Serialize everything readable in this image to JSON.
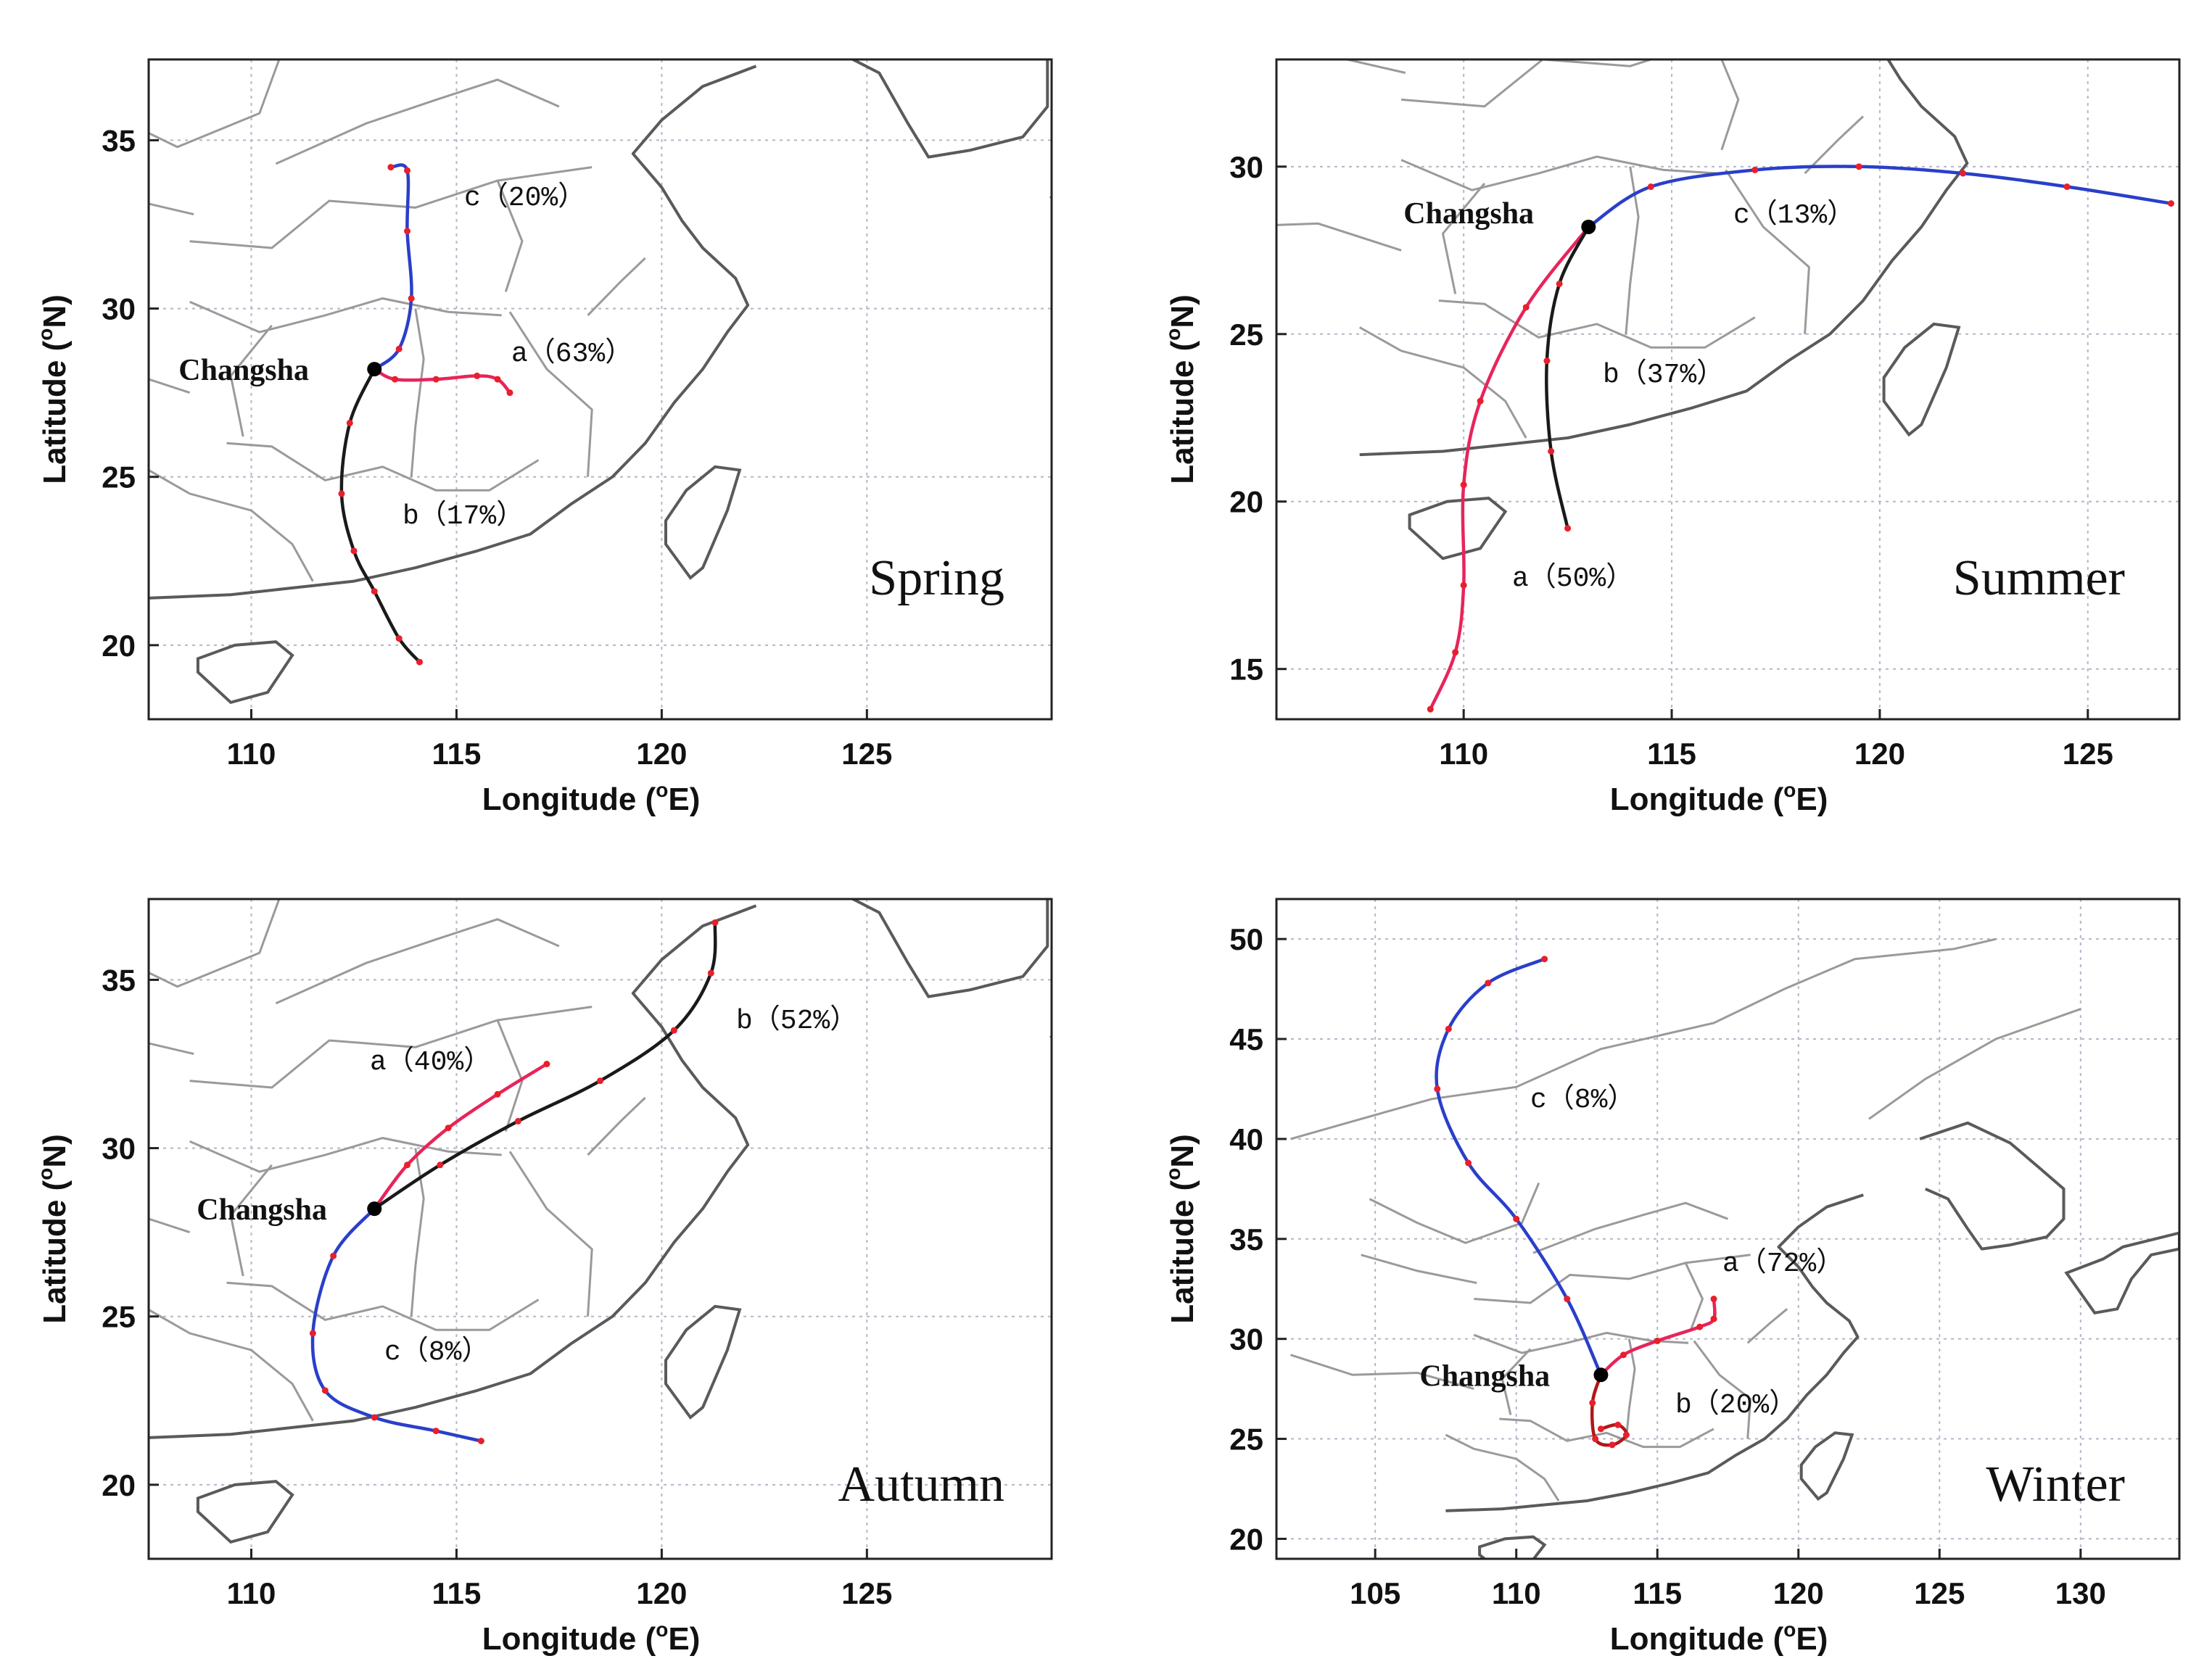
{
  "chart_data": [
    {
      "type": "map",
      "season": "Spring",
      "xlim": [
        107.5,
        129.5
      ],
      "ylim": [
        17.8,
        37.4
      ],
      "xticks": [
        110,
        115,
        120,
        125
      ],
      "yticks": [
        20,
        25,
        30,
        35
      ],
      "xlabel": "Longitude (°E)",
      "ylabel": "Latitude (°N)",
      "city": {
        "name": "Changsha",
        "lon": 113.0,
        "lat": 28.2
      },
      "trajectories": [
        {
          "label": "a（63%）",
          "color": "red",
          "lon": [
            113.0,
            113.5,
            114.5,
            115.5,
            116.0,
            116.3
          ],
          "lat": [
            28.2,
            27.9,
            27.9,
            28.0,
            27.9,
            27.5
          ]
        },
        {
          "label": "b（17%）",
          "color": "black",
          "lon": [
            113.0,
            112.4,
            112.2,
            112.5,
            113.0,
            113.6,
            114.1
          ],
          "lat": [
            28.2,
            26.6,
            24.5,
            22.8,
            21.6,
            20.2,
            19.5
          ]
        },
        {
          "label": "c（20%）",
          "color": "blue",
          "lon": [
            113.0,
            113.6,
            113.9,
            113.8,
            113.8,
            113.4
          ],
          "lat": [
            28.2,
            28.8,
            30.3,
            32.3,
            34.1,
            34.2
          ]
        }
      ]
    },
    {
      "type": "map",
      "season": "Summer",
      "xlim": [
        105.5,
        127.2
      ],
      "ylim": [
        13.5,
        33.2
      ],
      "xticks": [
        110,
        115,
        120,
        125
      ],
      "yticks": [
        15,
        20,
        25,
        30
      ],
      "xlabel": "Longitude (°E)",
      "ylabel": "Latitude (°N)",
      "city": {
        "name": "Changsha",
        "lon": 113.0,
        "lat": 28.2
      },
      "trajectories": [
        {
          "label": "a（50%）",
          "color": "red",
          "lon": [
            113.0,
            111.5,
            110.4,
            110.0,
            110.0,
            109.8,
            109.2
          ],
          "lat": [
            28.2,
            25.8,
            23.0,
            20.5,
            17.5,
            15.5,
            13.8
          ]
        },
        {
          "label": "b（37%）",
          "color": "black",
          "lon": [
            113.0,
            112.3,
            112.0,
            112.1,
            112.5
          ],
          "lat": [
            28.2,
            26.5,
            24.2,
            21.5,
            19.2
          ]
        },
        {
          "label": "c（13%）",
          "color": "blue",
          "lon": [
            113.0,
            114.5,
            117.0,
            119.5,
            122.0,
            124.5,
            127.0
          ],
          "lat": [
            28.2,
            29.4,
            29.9,
            30.0,
            29.8,
            29.4,
            28.9
          ]
        }
      ]
    },
    {
      "type": "map",
      "season": "Autumn",
      "xlim": [
        107.5,
        129.5
      ],
      "ylim": [
        17.8,
        37.4
      ],
      "xticks": [
        110,
        115,
        120,
        125
      ],
      "yticks": [
        20,
        25,
        30,
        35
      ],
      "xlabel": "Longitude (°E)",
      "ylabel": "Latitude (°N)",
      "city": {
        "name": "Changsha",
        "lon": 113.0,
        "lat": 28.2
      },
      "trajectories": [
        {
          "label": "a（40%）",
          "color": "red",
          "lon": [
            113.0,
            113.8,
            114.8,
            116.0,
            117.2
          ],
          "lat": [
            28.2,
            29.5,
            30.6,
            31.6,
            32.5
          ]
        },
        {
          "label": "b（52%）",
          "color": "black",
          "lon": [
            113.0,
            114.6,
            116.5,
            118.5,
            120.3,
            121.2,
            121.3
          ],
          "lat": [
            28.2,
            29.5,
            30.8,
            32.0,
            33.5,
            35.2,
            36.7
          ]
        },
        {
          "label": "c（8%）",
          "color": "blue",
          "lon": [
            113.0,
            112.0,
            111.5,
            111.8,
            113.0,
            114.5,
            115.6
          ],
          "lat": [
            28.2,
            26.8,
            24.5,
            22.8,
            22.0,
            21.6,
            21.3
          ]
        }
      ]
    },
    {
      "type": "map",
      "season": "Winter",
      "xlim": [
        101.5,
        133.5
      ],
      "ylim": [
        19.0,
        52.0
      ],
      "xticks": [
        105,
        110,
        115,
        120,
        125,
        130
      ],
      "yticks": [
        20,
        25,
        30,
        35,
        40,
        45,
        50
      ],
      "xlabel": "Longitude (°E)",
      "ylabel": "Latitude (°N)",
      "city": {
        "name": "Changsha",
        "lon": 113.0,
        "lat": 28.2
      },
      "trajectories": [
        {
          "label": "a（72%）",
          "color": "red",
          "lon": [
            113.0,
            113.8,
            115.0,
            116.5,
            117.0,
            117.0
          ],
          "lat": [
            28.2,
            29.2,
            29.9,
            30.6,
            31.0,
            32.0
          ]
        },
        {
          "label": "b（20%）",
          "color": "darkred",
          "lon": [
            113.0,
            112.7,
            112.8,
            113.4,
            113.9,
            113.6,
            113.0
          ],
          "lat": [
            28.2,
            26.8,
            25.0,
            24.7,
            25.2,
            25.7,
            25.5
          ]
        },
        {
          "label": "c（8%）",
          "color": "blue",
          "lon": [
            113.0,
            111.8,
            110.0,
            108.3,
            107.2,
            107.6,
            109.0,
            111.0
          ],
          "lat": [
            28.2,
            32.0,
            36.0,
            38.8,
            42.5,
            45.5,
            47.8,
            49.0
          ]
        }
      ]
    }
  ]
}
